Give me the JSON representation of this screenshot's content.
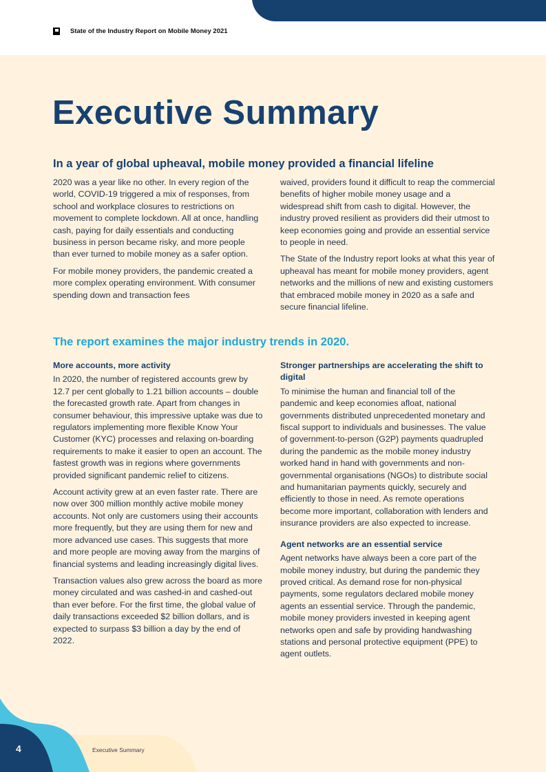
{
  "header": {
    "title": "State of the Industry Report on Mobile Money 2021",
    "logo_icon": "gsma-logo-icon"
  },
  "page_title": "Executive Summary",
  "section1": {
    "heading": "In a year of global upheaval, mobile money provided a financial lifeline",
    "paragraphs": [
      "2020 was a year like no other. In every region of the world, COVID-19 triggered a mix of responses, from school and workplace closures to restrictions on movement to complete lockdown. All at once, handling cash, paying for daily essentials and conducting business in person became risky, and more people than ever turned to mobile money as a safer option.",
      "For mobile money providers, the pandemic created a more complex operating environment. With consumer spending down and transaction fees",
      "waived, providers found it difficult to reap the commercial benefits of higher mobile money usage and a widespread shift from cash to digital. However, the industry proved resilient as providers did their utmost to keep economies going and provide an essential service to people in need.",
      "The State of the Industry report looks at what this year of upheaval has meant for mobile money providers, agent networks and the millions of new and existing customers that embraced mobile money in 2020 as a safe and secure financial lifeline."
    ]
  },
  "section2": {
    "heading": "The report examines the major industry trends in 2020.",
    "left": {
      "subheading": "More accounts, more activity",
      "paragraphs": [
        "In 2020, the number of registered accounts grew by 12.7 per cent globally to 1.21 billion accounts – double the forecasted growth rate. Apart from changes in consumer behaviour, this impressive uptake was due to regulators implementing more flexible Know Your Customer (KYC) processes and relaxing on-boarding requirements to make it easier to open an account. The fastest growth was in regions where governments provided significant pandemic relief to citizens.",
        "Account activity grew at an even faster rate. There are now over 300 million monthly active mobile money accounts. Not only are customers using their accounts more frequently, but they are using them for new and more advanced use cases. This suggests that more and more people are moving away from the margins of financial systems and leading increasingly digital lives.",
        "Transaction values also grew across the board as more money circulated and was cashed-in and cashed-out than ever before. For the first time, the global value of daily transactions exceeded $2 billion dollars, and is expected to surpass $3 billion a day by the end of 2022."
      ]
    },
    "right": {
      "subheading1": "Stronger partnerships are accelerating the shift to digital",
      "paragraph1": "To minimise the human and financial toll of the pandemic and keep economies afloat, national governments distributed unprecedented monetary and fiscal support to individuals and businesses. The value of government-to-person (G2P) payments quadrupled during the pandemic as the mobile money industry worked hand in hand with governments and non-governmental organisations (NGOs) to distribute social and humanitarian payments quickly, securely and efficiently to those in need. As remote operations become more important, collaboration with lenders and insurance providers are also expected to increase.",
      "subheading2": "Agent networks are an essential service",
      "paragraph2": "Agent networks have always been a core part of the mobile money industry, but during the pandemic they proved critical. As demand rose for non-physical payments, some regulators declared mobile money agents an essential service. Through the pandemic, mobile money providers invested in keeping agent networks open and safe by providing handwashing stations and personal protective equipment (PPE) to agent outlets."
    }
  },
  "footer": {
    "page_number": "4",
    "section_label": "Executive Summary"
  },
  "colors": {
    "navy": "#17416f",
    "cyan": "#4bc3e0",
    "background": "#fff3df",
    "heading_cyan": "#1ea7d8"
  }
}
